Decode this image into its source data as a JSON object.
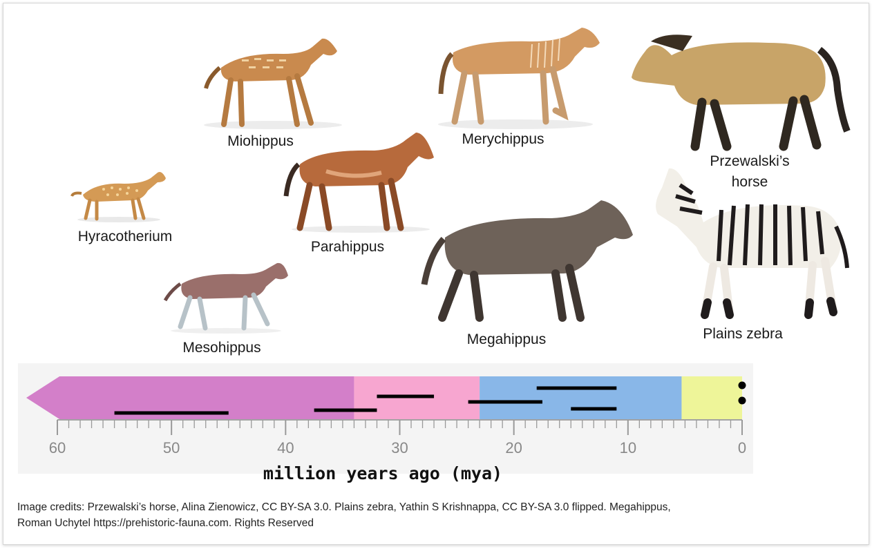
{
  "animals": [
    {
      "name": "Hyracotherium"
    },
    {
      "name": "Miohippus"
    },
    {
      "name": "Mesohippus"
    },
    {
      "name": "Parahippus"
    },
    {
      "name": "Merychippus"
    },
    {
      "name": "Megahippus"
    },
    {
      "name": "Przewalski’s horse",
      "lines": [
        "Przewalski’s",
        "horse"
      ]
    },
    {
      "name": "Plains zebra"
    }
  ],
  "timeline": {
    "xlabel": "million years ago (mya)",
    "ticks": [
      "60",
      "50",
      "40",
      "30",
      "20",
      "10",
      "0"
    ],
    "xlim": [
      60,
      0
    ],
    "periods": [
      {
        "from": 61.5,
        "to": 34,
        "color": "#d37fc9"
      },
      {
        "from": 34,
        "to": 23,
        "color": "#f7a6d0"
      },
      {
        "from": 23,
        "to": 5.3,
        "color": "#89b7e8"
      },
      {
        "from": 5.3,
        "to": 0,
        "color": "#eef599"
      }
    ],
    "ranges": [
      {
        "from": 55,
        "to": 45
      },
      {
        "from": 37.5,
        "to": 32
      },
      {
        "from": 32,
        "to": 27
      },
      {
        "from": 24,
        "to": 17.5
      },
      {
        "from": 18,
        "to": 11
      },
      {
        "from": 15,
        "to": 11
      },
      {
        "from": 0,
        "to": 0
      },
      {
        "from": 0,
        "to": 0
      }
    ]
  },
  "credits_line1": "Image credits: Przewalski’s horse, Alina Zienowicz, CC BY-SA 3.0. Plains zebra, Yathin S Krishnappa, CC BY-SA 3.0 flipped. Megahippus,",
  "credits_line2": "Roman Uchytel https://prehistoric-fauna.com. Rights Reserved",
  "colors": {
    "hyracotherium": "#d49a55",
    "miohippus": "#c98a4e",
    "mesohippus": "#9a6f6b",
    "parahippus": "#b76a3c",
    "merychippus": "#d39a62",
    "megahippus": "#6e6259",
    "przewalski": "#c8a468",
    "zebra_stripe": "#1f1b1c"
  }
}
